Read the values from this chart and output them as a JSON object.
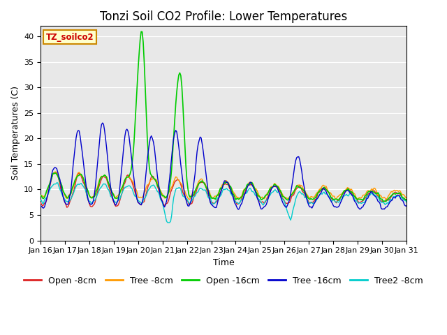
{
  "title": "Tonzi Soil CO2 Profile: Lower Temperatures",
  "xlabel": "Time",
  "ylabel": "Soil Temperatures (C)",
  "ylim": [
    0,
    42
  ],
  "yticks": [
    0,
    5,
    10,
    15,
    20,
    25,
    30,
    35,
    40
  ],
  "xlim": [
    0,
    360
  ],
  "background_color": "#e8e8e8",
  "fig_background": "#ffffff",
  "watermark_text": "TZ_soilco2",
  "watermark_bg": "#ffffcc",
  "watermark_border": "#cc8800",
  "title_fontsize": 12,
  "label_fontsize": 9,
  "tick_fontsize": 8,
  "legend_fontsize": 9,
  "series": {
    "Open -8cm": {
      "color": "#dd2222",
      "lw": 1.0
    },
    "Tree -8cm": {
      "color": "#ff9900",
      "lw": 1.0
    },
    "Open -16cm": {
      "color": "#00cc00",
      "lw": 1.2
    },
    "Tree -16cm": {
      "color": "#0000cc",
      "lw": 1.0
    },
    "Tree2 -8cm": {
      "color": "#00cccc",
      "lw": 1.0
    }
  },
  "xtick_labels": [
    "Jan 16",
    "Jan 17",
    "Jan 18",
    "Jan 19",
    "Jan 20",
    "Jan 21",
    "Jan 22",
    "Jan 23",
    "Jan 24",
    "Jan 25",
    "Jan 26",
    "Jan 27",
    "Jan 28",
    "Jan 29",
    "Jan 30",
    "Jan 31"
  ],
  "xtick_positions": [
    0,
    24,
    48,
    72,
    96,
    120,
    144,
    168,
    192,
    216,
    240,
    264,
    288,
    312,
    336,
    360
  ]
}
